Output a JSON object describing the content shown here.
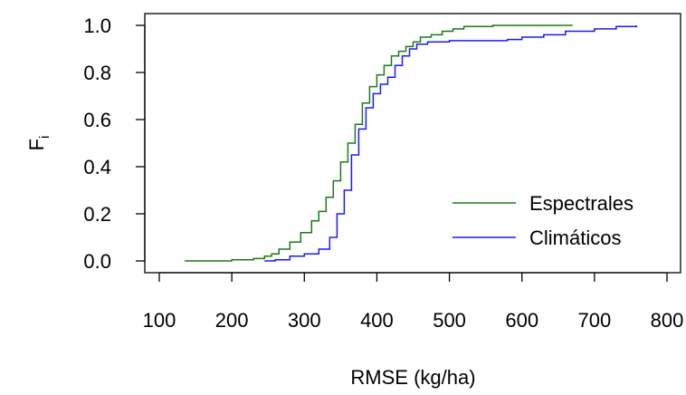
{
  "chart_data": {
    "type": "line",
    "title": "",
    "xlabel": "RMSE (kg/ha)",
    "ylabel": "F",
    "ylabel_subscript": "i",
    "xlim": [
      100,
      800
    ],
    "ylim": [
      0.0,
      1.0
    ],
    "xticks": [
      "100",
      "200",
      "300",
      "400",
      "500",
      "600",
      "700",
      "800"
    ],
    "yticks": [
      "0.0",
      "0.2",
      "0.4",
      "0.6",
      "0.8",
      "1.0"
    ],
    "grid": false,
    "legend_position": "bottom-right",
    "series": [
      {
        "name": "Espectrales",
        "color": "#1a7a1a",
        "points": [
          [
            135,
            0.0
          ],
          [
            170,
            0.0
          ],
          [
            200,
            0.005
          ],
          [
            230,
            0.01
          ],
          [
            245,
            0.02
          ],
          [
            255,
            0.03
          ],
          [
            265,
            0.05
          ],
          [
            280,
            0.08
          ],
          [
            295,
            0.12
          ],
          [
            310,
            0.17
          ],
          [
            320,
            0.21
          ],
          [
            330,
            0.27
          ],
          [
            340,
            0.34
          ],
          [
            350,
            0.42
          ],
          [
            360,
            0.5
          ],
          [
            370,
            0.58
          ],
          [
            380,
            0.67
          ],
          [
            390,
            0.74
          ],
          [
            400,
            0.79
          ],
          [
            410,
            0.83
          ],
          [
            420,
            0.87
          ],
          [
            430,
            0.89
          ],
          [
            440,
            0.91
          ],
          [
            450,
            0.93
          ],
          [
            460,
            0.95
          ],
          [
            475,
            0.96
          ],
          [
            490,
            0.975
          ],
          [
            505,
            0.985
          ],
          [
            520,
            0.995
          ],
          [
            560,
            1.0
          ],
          [
            670,
            1.0
          ]
        ]
      },
      {
        "name": "Climáticos",
        "color": "#1a1aff",
        "points": [
          [
            245,
            0.0
          ],
          [
            260,
            0.005
          ],
          [
            280,
            0.02
          ],
          [
            300,
            0.03
          ],
          [
            320,
            0.05
          ],
          [
            335,
            0.1
          ],
          [
            345,
            0.2
          ],
          [
            355,
            0.3
          ],
          [
            365,
            0.45
          ],
          [
            375,
            0.56
          ],
          [
            385,
            0.65
          ],
          [
            395,
            0.71
          ],
          [
            405,
            0.75
          ],
          [
            415,
            0.78
          ],
          [
            425,
            0.83
          ],
          [
            435,
            0.87
          ],
          [
            445,
            0.9
          ],
          [
            455,
            0.92
          ],
          [
            470,
            0.93
          ],
          [
            500,
            0.935
          ],
          [
            550,
            0.935
          ],
          [
            580,
            0.94
          ],
          [
            600,
            0.95
          ],
          [
            630,
            0.96
          ],
          [
            660,
            0.975
          ],
          [
            700,
            0.985
          ],
          [
            730,
            0.995
          ],
          [
            758,
            1.0
          ]
        ]
      }
    ]
  }
}
